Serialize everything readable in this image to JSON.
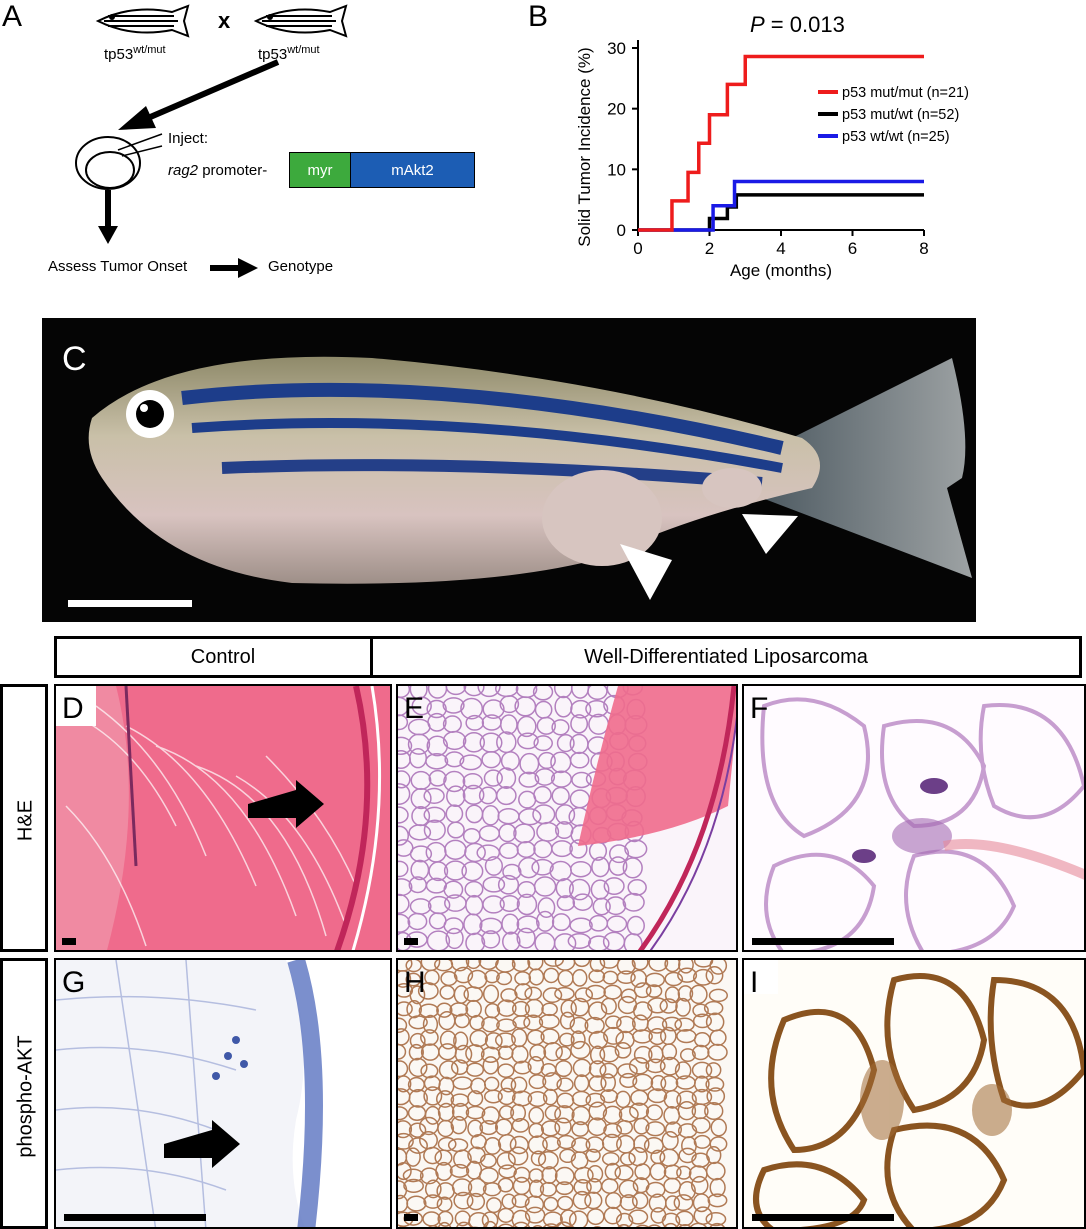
{
  "panels": {
    "a": {
      "letter": "A",
      "cross_symbol": "x",
      "parent1": "tp53",
      "parent1_sup": "wt/mut",
      "parent2": "tp53",
      "parent2_sup": "wt/mut",
      "inject_label": "Inject:",
      "promoter_italic": "rag2",
      "promoter_rest": " promoter-",
      "construct_myr": "myr",
      "construct_akt": "mAkt2",
      "assess_label": "Assess Tumor Onset",
      "genotype_label": "Genotype",
      "myr_color": "#3daa3d",
      "akt_color": "#1c5db4"
    },
    "b": {
      "letter": "B"
    },
    "c": {
      "letter": "C"
    },
    "d": {
      "letter": "D"
    },
    "e": {
      "letter": "E"
    },
    "f": {
      "letter": "F"
    },
    "g": {
      "letter": "G"
    },
    "h": {
      "letter": "H"
    },
    "i": {
      "letter": "I"
    }
  },
  "headers": {
    "control": "Control",
    "wdls": "Well-Differentiated Liposarcoma"
  },
  "row_labels": {
    "he": "H&E",
    "pakt": "phospho-AKT"
  },
  "chart_data": {
    "type": "line",
    "subtype": "step",
    "title_italic": "P",
    "title_rest": " = 0.013",
    "xlabel": "Age (months)",
    "ylabel": "Solid Tumor Incidence (%)",
    "xlim": [
      0,
      8
    ],
    "ylim": [
      0,
      30
    ],
    "xticks": [
      "0",
      "2",
      "4",
      "6",
      "8"
    ],
    "yticks": [
      "0",
      "10",
      "20",
      "30"
    ],
    "legend_position": "right",
    "series": [
      {
        "name": "p53 mut/mut (n=21)",
        "color": "#ee1c1c",
        "x": [
          0,
          0.95,
          0.95,
          1.4,
          1.4,
          1.7,
          1.7,
          2.0,
          2.0,
          2.5,
          2.5,
          2.75,
          2.75,
          3.0,
          3.0,
          8
        ],
        "y": [
          0,
          0,
          4.8,
          4.8,
          9.5,
          9.5,
          14.3,
          14.3,
          19,
          19,
          24,
          24,
          24,
          24,
          28.6,
          28.6
        ]
      },
      {
        "name": "p53 mut/wt (n=52)",
        "color": "#000000",
        "x": [
          0,
          2.0,
          2.0,
          2.5,
          2.5,
          2.75,
          2.75,
          8
        ],
        "y": [
          0,
          0,
          1.9,
          1.9,
          3.8,
          3.8,
          5.8,
          5.8
        ]
      },
      {
        "name": "p53 wt/wt (n=25)",
        "color": "#1a1ae6",
        "x": [
          0,
          2.1,
          2.1,
          2.45,
          2.45,
          2.6,
          2.6,
          2.7,
          2.7,
          8
        ],
        "y": [
          0,
          0,
          4,
          4,
          4,
          4,
          4,
          4,
          8,
          8
        ]
      }
    ]
  }
}
